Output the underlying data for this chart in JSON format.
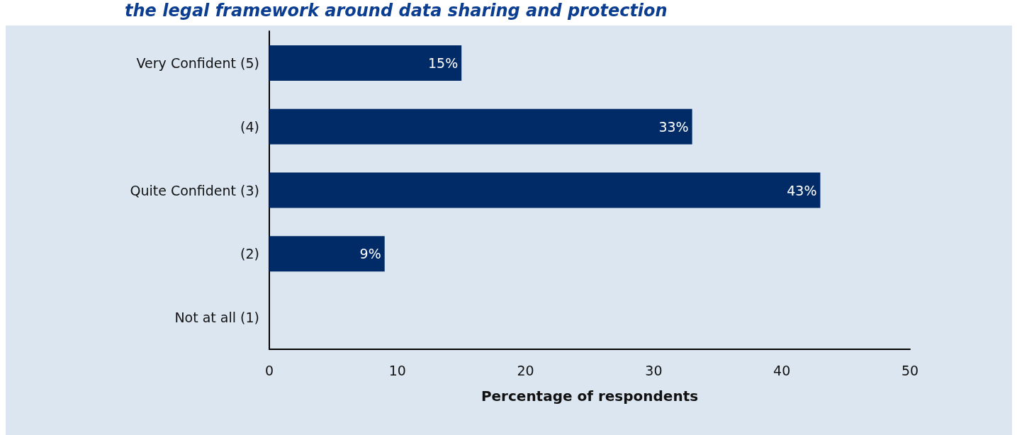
{
  "chart_data": {
    "type": "bar",
    "orientation": "horizontal",
    "title": "the legal framework around data sharing and protection",
    "categories": [
      "Very Confident (5)",
      "(4)",
      "Quite Confident (3)",
      "(2)",
      "Not at all (1)"
    ],
    "values": [
      15,
      33,
      43,
      9,
      0
    ],
    "value_labels": [
      "15%",
      "33%",
      "43%",
      "9%",
      null
    ],
    "color": "#002b66",
    "xlabel": "Percentage of respondents",
    "xlim": [
      0,
      50
    ],
    "xticks": [
      0,
      10,
      20,
      30,
      40,
      50
    ],
    "grid": false
  }
}
